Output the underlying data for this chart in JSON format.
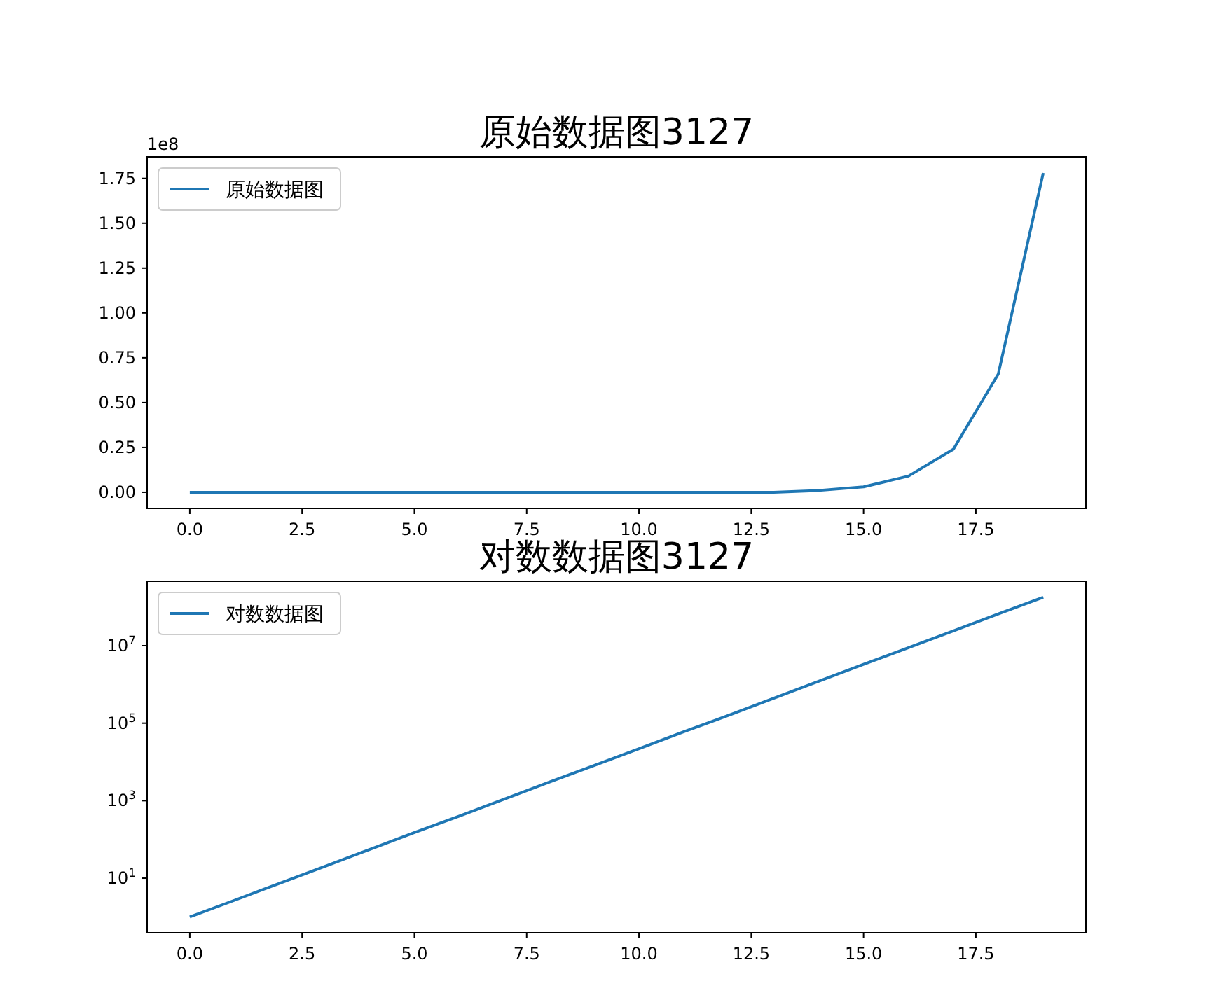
{
  "chart_data": [
    {
      "type": "line",
      "title": "原始数据图3127",
      "annotations": [
        "1e8"
      ],
      "x": [
        0,
        1,
        2,
        3,
        4,
        5,
        6,
        7,
        8,
        9,
        10,
        11,
        12,
        13,
        14,
        15,
        16,
        17,
        18,
        19
      ],
      "series": [
        {
          "name": "原始数据图",
          "color": "#1f77b4",
          "values": [
            0,
            0,
            0,
            0,
            0,
            0,
            0,
            0,
            0,
            0,
            0,
            0,
            0,
            0,
            0.01,
            0.03,
            0.09,
            0.24,
            0.66,
            1.78
          ]
        }
      ],
      "xlim": [
        -0.95,
        19.95
      ],
      "xticks": [
        {
          "value": 0,
          "label": "0.0"
        },
        {
          "value": 2.5,
          "label": "2.5"
        },
        {
          "value": 5,
          "label": "5.0"
        },
        {
          "value": 7.5,
          "label": "7.5"
        },
        {
          "value": 10,
          "label": "10.0"
        },
        {
          "value": 12.5,
          "label": "12.5"
        },
        {
          "value": 15,
          "label": "15.0"
        },
        {
          "value": 17.5,
          "label": "17.5"
        }
      ],
      "ylim": [
        -0.09,
        1.87
      ],
      "yticks": [
        {
          "value": 0,
          "label": "0.00"
        },
        {
          "value": 0.25,
          "label": "0.25"
        },
        {
          "value": 0.5,
          "label": "0.50"
        },
        {
          "value": 0.75,
          "label": "0.75"
        },
        {
          "value": 1,
          "label": "1.00"
        },
        {
          "value": 1.25,
          "label": "1.25"
        },
        {
          "value": 1.5,
          "label": "1.50"
        },
        {
          "value": 1.75,
          "label": "1.75"
        }
      ],
      "legend": "top left"
    },
    {
      "type": "line",
      "title": "对数数据图3127",
      "x": [
        0,
        1,
        2,
        3,
        4,
        5,
        6,
        7,
        8,
        9,
        10,
        11,
        12,
        13,
        14,
        15,
        16,
        17,
        18,
        19
      ],
      "series": [
        {
          "name": "对数数据图",
          "color": "#1f77b4",
          "values": [
            1,
            2.7,
            7.4,
            20,
            55,
            150,
            400,
            1100,
            3000,
            8100,
            22000,
            60000,
            160000,
            440000,
            1200000,
            3300000,
            8900000,
            24000000,
            66000000,
            178000000
          ]
        }
      ],
      "xlim": [
        -0.95,
        19.95
      ],
      "xticks": [
        {
          "value": 0,
          "label": "0.0"
        },
        {
          "value": 2.5,
          "label": "2.5"
        },
        {
          "value": 5,
          "label": "5.0"
        },
        {
          "value": 7.5,
          "label": "7.5"
        },
        {
          "value": 10,
          "label": "10.0"
        },
        {
          "value": 12.5,
          "label": "12.5"
        },
        {
          "value": 15,
          "label": "15.0"
        },
        {
          "value": 17.5,
          "label": "17.5"
        }
      ],
      "log": true,
      "ylim": [
        0.39,
        460000000
      ],
      "yticks": [
        {
          "value": 10,
          "label": "10$^{1}$"
        },
        {
          "value": 1000,
          "label": "10$^{3}$"
        },
        {
          "value": 100000,
          "label": "10$^{5}$"
        },
        {
          "value": 10000000,
          "label": "10$^{7}$"
        }
      ],
      "legend": "top left"
    }
  ]
}
